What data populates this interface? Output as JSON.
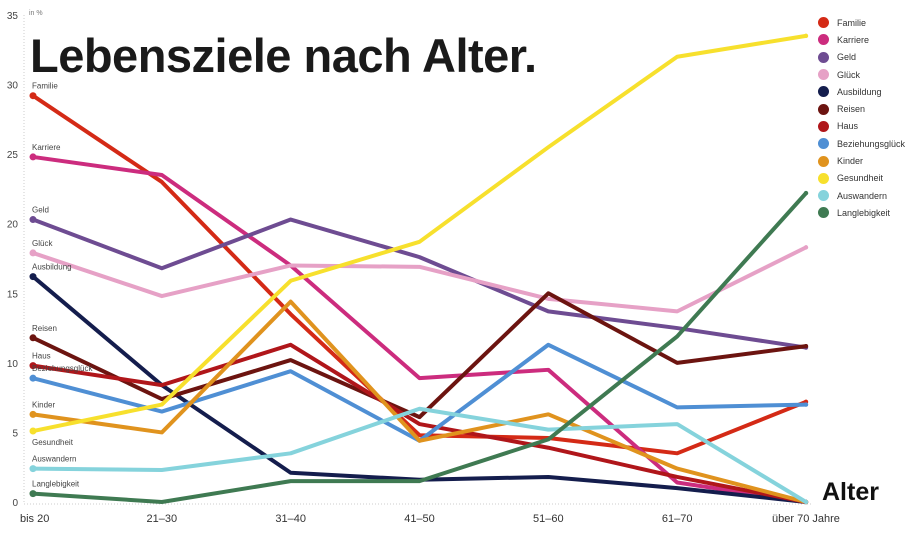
{
  "chart_data": {
    "type": "line",
    "title": "Lebensziele nach Alter.",
    "unit_label": "in %",
    "xlabel": "Alter",
    "ylabel": "",
    "categories": [
      "bis 20",
      "21–30",
      "31–40",
      "41–50",
      "51–60",
      "61–70",
      "über 70 Jahre"
    ],
    "ylim": [
      0,
      35
    ],
    "yticks": [
      "0",
      "5",
      "10",
      "15",
      "20",
      "25",
      "30",
      "35"
    ],
    "grid": false,
    "legend_position": "top-right",
    "series": [
      {
        "name": "Familie",
        "color": "#d42a16",
        "values": [
          29.2,
          23.0,
          13.5,
          4.8,
          4.6,
          3.5,
          7.2
        ]
      },
      {
        "name": "Karriere",
        "color": "#cc2c7e",
        "values": [
          24.8,
          23.5,
          17.0,
          8.9,
          9.5,
          1.4,
          0
        ]
      },
      {
        "name": "Geld",
        "color": "#6e4c92",
        "values": [
          20.3,
          16.8,
          20.3,
          17.6,
          13.7,
          12.5,
          11.1
        ]
      },
      {
        "name": "Glück",
        "color": "#e6a1c6",
        "values": [
          17.9,
          14.8,
          17.0,
          16.9,
          14.6,
          13.7,
          18.3
        ]
      },
      {
        "name": "Ausbildung",
        "color": "#141d4d",
        "values": [
          16.2,
          8.4,
          2.1,
          1.6,
          1.8,
          1.0,
          0
        ]
      },
      {
        "name": "Reisen",
        "color": "#6c1410",
        "values": [
          11.8,
          7.4,
          10.2,
          6.1,
          15.0,
          10.0,
          11.2
        ]
      },
      {
        "name": "Haus",
        "color": "#b0161a",
        "values": [
          9.8,
          8.4,
          11.3,
          5.6,
          3.9,
          1.8,
          0
        ]
      },
      {
        "name": "Beziehungsglück",
        "color": "#4f8fd4",
        "values": [
          8.9,
          6.5,
          9.4,
          4.4,
          11.3,
          6.8,
          7.0
        ]
      },
      {
        "name": "Kinder",
        "color": "#e0931e",
        "values": [
          6.3,
          5.0,
          14.4,
          4.4,
          6.3,
          2.4,
          0
        ]
      },
      {
        "name": "Gesundheit",
        "color": "#f7e02d",
        "values": [
          5.1,
          7.0,
          15.9,
          18.7,
          25.5,
          32.0,
          33.5
        ]
      },
      {
        "name": "Auswandern",
        "color": "#85d3dc",
        "values": [
          2.4,
          2.3,
          3.5,
          6.7,
          5.2,
          5.6,
          0
        ]
      },
      {
        "name": "Langlebigkeit",
        "color": "#3f7a52",
        "values": [
          0.6,
          0,
          1.5,
          1.5,
          4.5,
          11.9,
          22.2
        ]
      }
    ]
  }
}
